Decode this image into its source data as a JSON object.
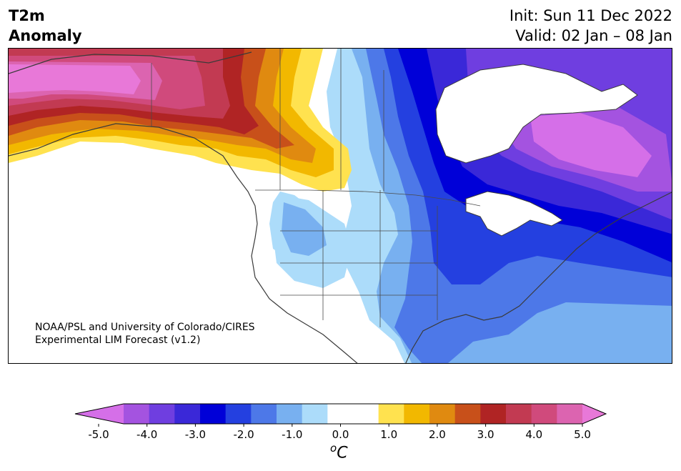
{
  "header": {
    "title_line1": "T2m",
    "title_line2": "Anomaly",
    "init_label": "Init: Sun 11 Dec 2022",
    "valid_label": "Valid: 02 Jan – 08 Jan"
  },
  "credit": {
    "line1": "NOAA/PSL and University of Colorado/CIRES",
    "line2": "Experimental LIM Forecast (v1.2)"
  },
  "colorbar": {
    "ticks": [
      "-5.0",
      "-4.0",
      "-3.0",
      "-2.0",
      "-1.0",
      "0.0",
      "1.0",
      "2.0",
      "3.0",
      "4.0",
      "5.0"
    ],
    "unit_base": "C",
    "unit_sup": "o",
    "colors": [
      "#d56fe8",
      "#a453e0",
      "#6f3ee0",
      "#3a28d8",
      "#0000d8",
      "#2440e0",
      "#4d78e8",
      "#78b0f0",
      "#acdcfa",
      "#ffffff",
      "#ffffff",
      "#ffe24f",
      "#f2b800",
      "#e08a10",
      "#c8501a",
      "#b02424",
      "#c23a52",
      "#d04a7c",
      "#dc64b0",
      "#e878d8"
    ]
  },
  "map": {
    "region": "North America",
    "field": "2m temperature anomaly",
    "cold_core": "Hudson Bay / Great Lakes / Northeast US",
    "warm_core": "Alaska / Yukon"
  }
}
